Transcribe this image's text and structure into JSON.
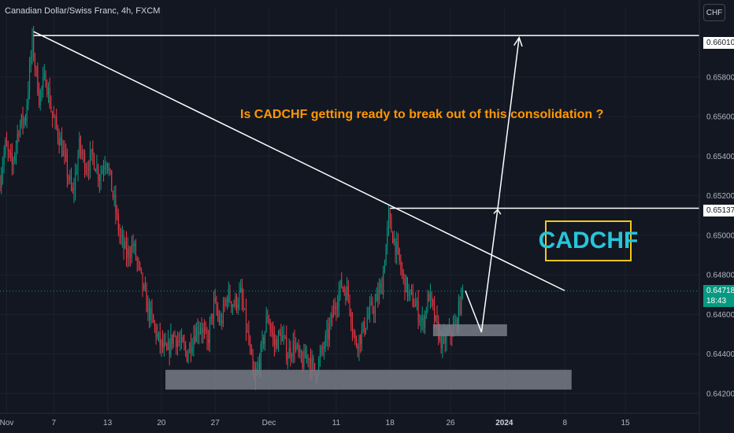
{
  "header": {
    "title": "Canadian Dollar/Swiss Franc, 4h, FXCM",
    "currency_button": "CHF"
  },
  "annotations": {
    "question": "Is CADCHF getting ready to break out of this consolidation ?",
    "badge": "CADCHF"
  },
  "price_tags": {
    "top_level": "0.66010",
    "mid_level": "0.65137",
    "last_price": "0.64718",
    "countdown": "18:43"
  },
  "chart_data": {
    "type": "candlestick",
    "symbol": "CADCHF",
    "interval": "4h",
    "source": "FXCM",
    "ylim": [
      0.641,
      0.6615
    ],
    "y_ticks": [
      0.642,
      0.644,
      0.646,
      0.648,
      0.65,
      0.652,
      0.654,
      0.656,
      0.658
    ],
    "y_tick_labels": [
      "0.64200",
      "0.64400",
      "0.64600",
      "0.64800",
      "0.65000",
      "0.65200",
      "0.65400",
      "0.65600",
      "0.65800"
    ],
    "x_tick_labels": [
      "Nov",
      "7",
      "13",
      "20",
      "27",
      "Dec",
      "11",
      "18",
      "26",
      "2024",
      "8",
      "15"
    ],
    "x_tick_positions": [
      0.5,
      4,
      8,
      12,
      16,
      20,
      25,
      29,
      33.5,
      37.5,
      42,
      46.5
    ],
    "x_range": [
      0,
      52
    ],
    "price_path": [
      [
        0,
        0.6525
      ],
      [
        0.5,
        0.6545
      ],
      [
        1,
        0.6535
      ],
      [
        1.5,
        0.6555
      ],
      [
        2,
        0.656
      ],
      [
        2.5,
        0.6598
      ],
      [
        3,
        0.657
      ],
      [
        3.5,
        0.658
      ],
      [
        4,
        0.656
      ],
      [
        4.5,
        0.655
      ],
      [
        5,
        0.6535
      ],
      [
        5.5,
        0.652
      ],
      [
        6,
        0.6545
      ],
      [
        6.5,
        0.6535
      ],
      [
        7,
        0.654
      ],
      [
        7.5,
        0.653
      ],
      [
        8,
        0.654
      ],
      [
        8.5,
        0.652
      ],
      [
        9,
        0.65
      ],
      [
        9.5,
        0.649
      ],
      [
        10,
        0.6495
      ],
      [
        10.5,
        0.648
      ],
      [
        11,
        0.6465
      ],
      [
        11.5,
        0.6455
      ],
      [
        12,
        0.6445
      ],
      [
        12.5,
        0.644
      ],
      [
        13,
        0.645
      ],
      [
        13.5,
        0.6445
      ],
      [
        14,
        0.644
      ],
      [
        14.5,
        0.645
      ],
      [
        15,
        0.6455
      ],
      [
        15.5,
        0.6445
      ],
      [
        16,
        0.6465
      ],
      [
        16.5,
        0.6455
      ],
      [
        17,
        0.647
      ],
      [
        17.5,
        0.6465
      ],
      [
        18,
        0.647
      ],
      [
        18.5,
        0.645
      ],
      [
        19,
        0.6425
      ],
      [
        19.5,
        0.644
      ],
      [
        20,
        0.646
      ],
      [
        20.5,
        0.6445
      ],
      [
        21,
        0.645
      ],
      [
        21.5,
        0.644
      ],
      [
        22,
        0.6445
      ],
      [
        22.5,
        0.6435
      ],
      [
        23,
        0.644
      ],
      [
        23.5,
        0.643
      ],
      [
        24,
        0.644
      ],
      [
        24.5,
        0.645
      ],
      [
        25,
        0.6465
      ],
      [
        25.5,
        0.6475
      ],
      [
        26,
        0.647
      ],
      [
        26.5,
        0.6445
      ],
      [
        27,
        0.645
      ],
      [
        27.5,
        0.646
      ],
      [
        28,
        0.6465
      ],
      [
        28.5,
        0.6475
      ],
      [
        29,
        0.6508
      ],
      [
        29.5,
        0.6495
      ],
      [
        30,
        0.648
      ],
      [
        30.5,
        0.647
      ],
      [
        31,
        0.6465
      ],
      [
        31.5,
        0.6455
      ],
      [
        32,
        0.647
      ],
      [
        32.5,
        0.6455
      ],
      [
        33,
        0.6445
      ],
      [
        33.5,
        0.645
      ],
      [
        34,
        0.6455
      ],
      [
        34.5,
        0.6472
      ]
    ],
    "drawings": {
      "resistance_top": 0.6601,
      "resistance_mid": 0.65137,
      "trendline": [
        [
          2.5,
          0.6603
        ],
        [
          42,
          0.6472
        ]
      ],
      "support_zone_low": [
        0.6422,
        0.6432
      ],
      "support_zone_mid": [
        0.6449,
        0.6455
      ],
      "projection_path": [
        [
          34.6,
          0.6472
        ],
        [
          35.8,
          0.6451
        ],
        [
          37,
          0.6513
        ],
        [
          38.6,
          0.66
        ]
      ]
    },
    "colors": {
      "up": "#089981",
      "down": "#f23645",
      "background": "#131722",
      "grid": "#1e222d",
      "drawing": "#ffffff",
      "zone": "#787b86"
    }
  }
}
